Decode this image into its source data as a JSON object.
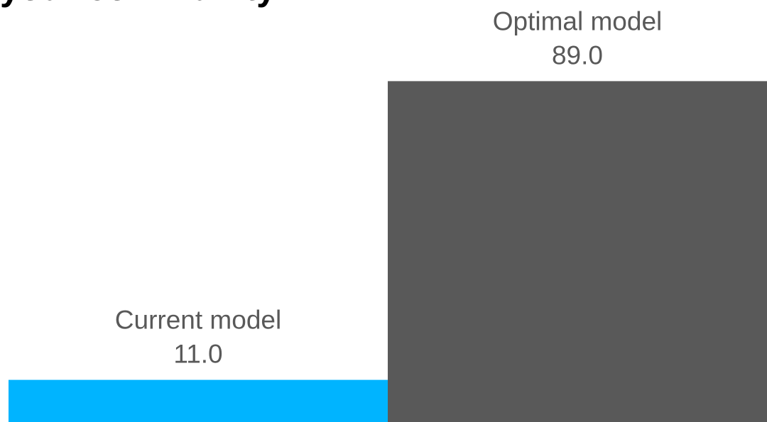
{
  "heading": "your community.",
  "chart_data": {
    "type": "bar",
    "categories": [
      "Current model",
      "Optimal model"
    ],
    "values": [
      11.0,
      89.0
    ],
    "value_labels": [
      "11.0",
      "89.0"
    ],
    "colors": [
      "#00B4FF",
      "#595959"
    ],
    "ylim": [
      0,
      100
    ],
    "grid": false
  }
}
